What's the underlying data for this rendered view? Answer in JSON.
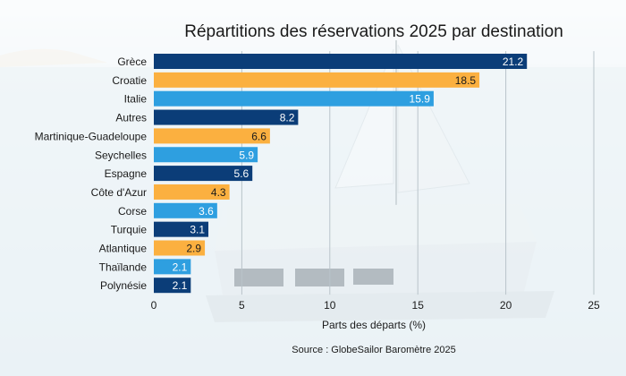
{
  "chart_data": {
    "type": "bar",
    "orientation": "horizontal",
    "title": "Répartitions des réservations 2025 par destination",
    "xlabel": "Parts des départs (%)",
    "ylabel": "",
    "source": "Source : GlobeSailor Baromètre 2025",
    "xlim": [
      0,
      25
    ],
    "xticks": [
      0,
      5,
      10,
      15,
      20,
      25
    ],
    "grid": "vertical",
    "categories": [
      "Grèce",
      "Croatie",
      "Italie",
      "Autres",
      "Martinique-Guadeloupe",
      "Seychelles",
      "Espagne",
      "Côte d'Azur",
      "Corse",
      "Turquie",
      "Atlantique",
      "Thaïlande",
      "Polynésie"
    ],
    "values": [
      21.2,
      18.5,
      15.9,
      8.2,
      6.6,
      5.9,
      5.6,
      4.3,
      3.6,
      3.1,
      2.9,
      2.1,
      2.1
    ],
    "value_labels": [
      "21.2",
      "18.5",
      "15.9",
      "8.2",
      "6.6",
      "5.9",
      "5.6",
      "4.3",
      "3.6",
      "3.1",
      "2.9",
      "2.1",
      "2.1"
    ],
    "bar_colors": [
      "#0b3d78",
      "#fbb040",
      "#2e9fe0",
      "#0b3d78",
      "#fbb040",
      "#2e9fe0",
      "#0b3d78",
      "#fbb040",
      "#2e9fe0",
      "#0b3d78",
      "#fbb040",
      "#2e9fe0",
      "#0b3d78"
    ],
    "label_colors": [
      "#ffffff",
      "#1a1a1a",
      "#ffffff",
      "#ffffff",
      "#1a1a1a",
      "#ffffff",
      "#ffffff",
      "#1a1a1a",
      "#ffffff",
      "#ffffff",
      "#1a1a1a",
      "#ffffff",
      "#ffffff"
    ]
  },
  "colors": {
    "dark_blue": "#0b3d78",
    "orange": "#fbb040",
    "light_blue": "#2e9fe0",
    "background": "sea-and-catamaran-photo"
  }
}
